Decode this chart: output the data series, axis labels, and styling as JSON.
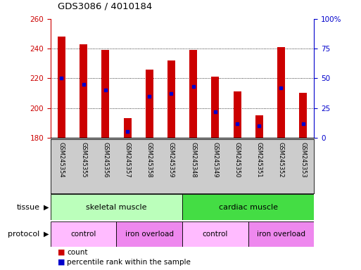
{
  "title": "GDS3086 / 4010184",
  "samples": [
    "GSM245354",
    "GSM245355",
    "GSM245356",
    "GSM245357",
    "GSM245358",
    "GSM245359",
    "GSM245348",
    "GSM245349",
    "GSM245350",
    "GSM245351",
    "GSM245352",
    "GSM245353"
  ],
  "count_values": [
    248,
    243,
    239,
    193,
    226,
    232,
    239,
    221,
    211,
    195,
    241,
    210
  ],
  "percentile_values": [
    50,
    45,
    40,
    5,
    35,
    37,
    43,
    22,
    12,
    10,
    42,
    12
  ],
  "ymin": 180,
  "ymax": 260,
  "yticks": [
    180,
    200,
    220,
    240,
    260
  ],
  "y2min": 0,
  "y2max": 100,
  "y2ticks": [
    0,
    25,
    50,
    75,
    100
  ],
  "y2ticklabels": [
    "0",
    "25",
    "50",
    "75",
    "100%"
  ],
  "bar_color": "#cc0000",
  "marker_color": "#0000cc",
  "left_tick_color": "#cc0000",
  "right_tick_color": "#0000cc",
  "grid_lines": [
    200,
    220,
    240
  ],
  "tissue_groups": [
    {
      "label": "skeletal muscle",
      "start": 0,
      "end": 5,
      "color": "#bbffbb"
    },
    {
      "label": "cardiac muscle",
      "start": 6,
      "end": 11,
      "color": "#44dd44"
    }
  ],
  "protocol_groups": [
    {
      "label": "control",
      "start": 0,
      "end": 2,
      "color": "#ffbbff"
    },
    {
      "label": "iron overload",
      "start": 3,
      "end": 5,
      "color": "#ee88ee"
    },
    {
      "label": "control",
      "start": 6,
      "end": 8,
      "color": "#ffbbff"
    },
    {
      "label": "iron overload",
      "start": 9,
      "end": 11,
      "color": "#ee88ee"
    }
  ],
  "legend_items": [
    {
      "label": "count",
      "color": "#cc0000"
    },
    {
      "label": "percentile rank within the sample",
      "color": "#0000cc"
    }
  ],
  "bar_width": 0.35,
  "tissue_label": "tissue",
  "protocol_label": "protocol",
  "xtick_bg_color": "#cccccc",
  "fig_width": 5.13,
  "fig_height": 3.84,
  "fig_dpi": 100
}
